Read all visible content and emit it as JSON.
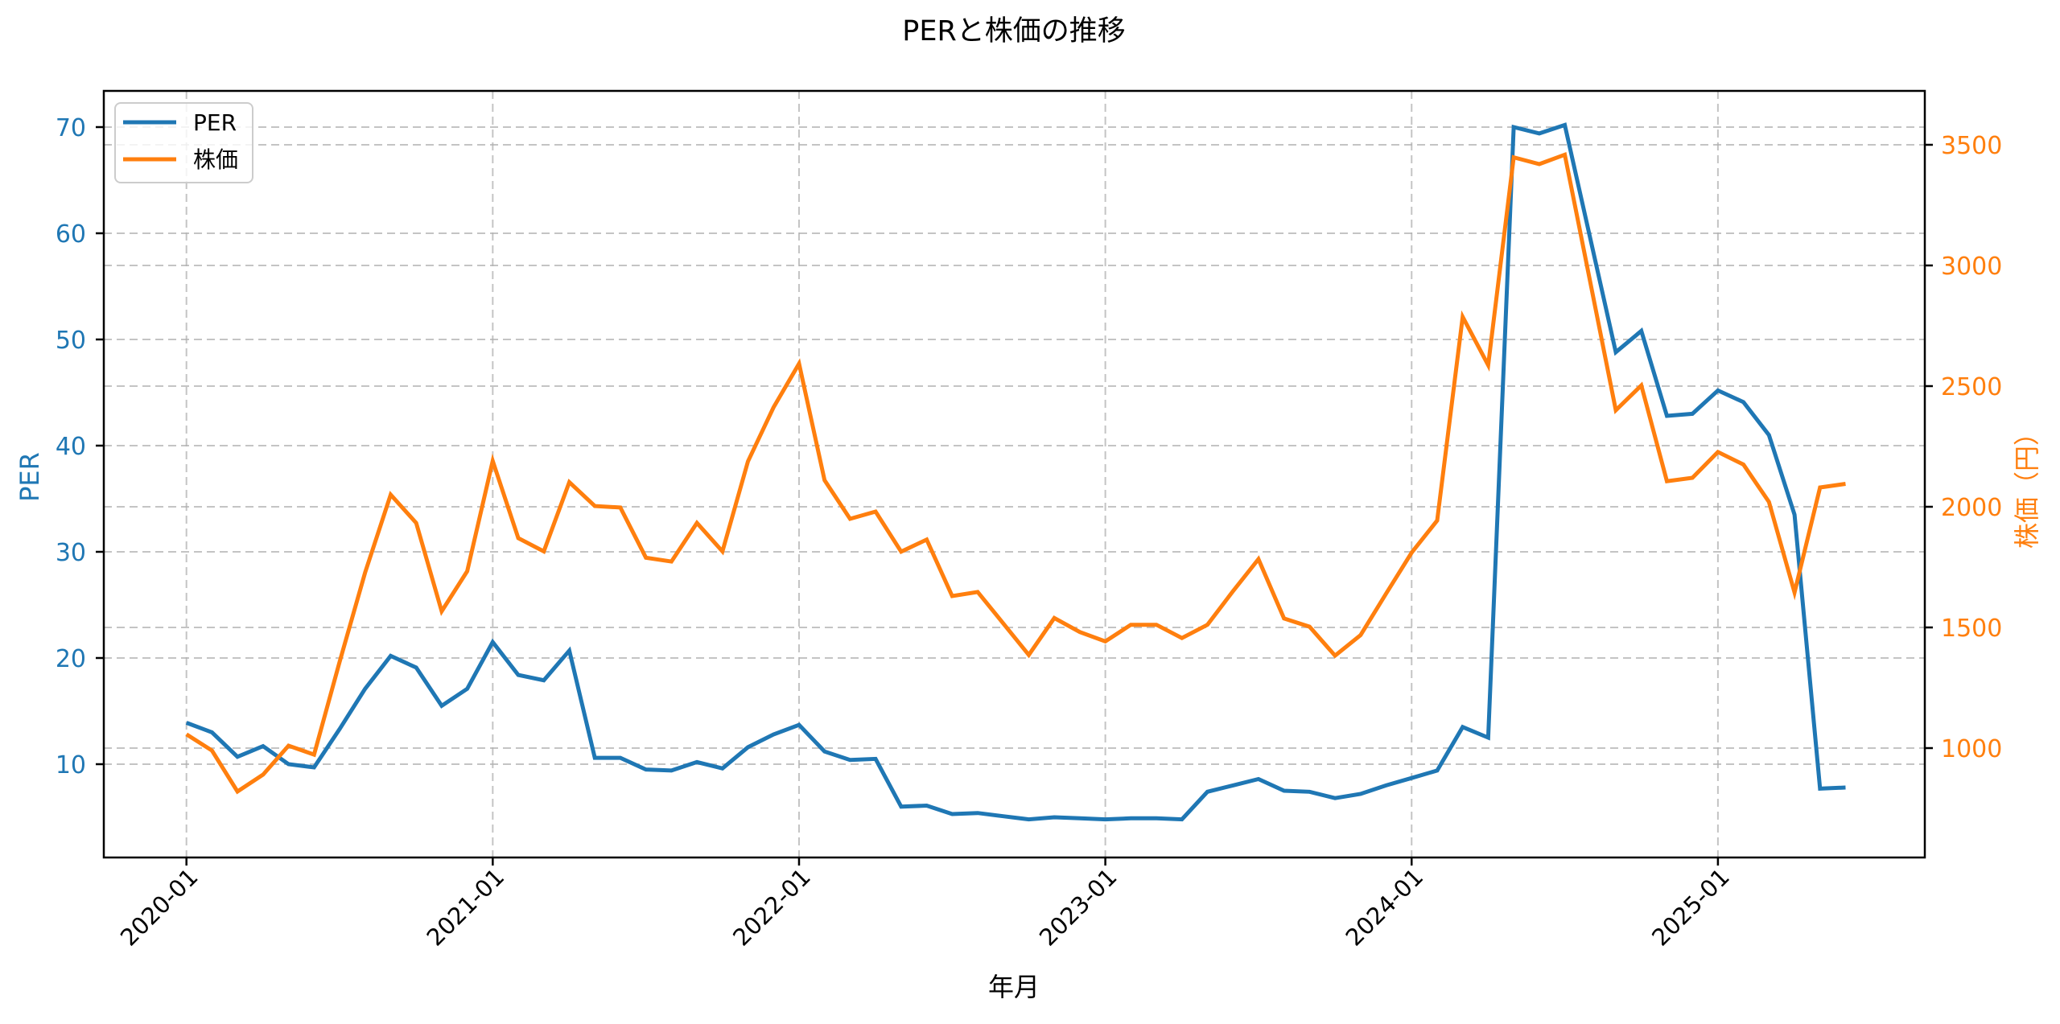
{
  "chart_data": {
    "type": "line",
    "title": "PERと株価の推移",
    "xlabel": "年月",
    "ylabel_left": "PER",
    "ylabel_right": "株価（円）",
    "ylim_left": [
      1.2,
      73.3
    ],
    "ylim_right": [
      550,
      3720
    ],
    "yticks_left": [
      10,
      20,
      30,
      40,
      50,
      60,
      70
    ],
    "yticks_right": [
      1000,
      1500,
      2000,
      2500,
      3000,
      3500
    ],
    "xticks": [
      "2020-01",
      "2021-01",
      "2022-01",
      "2023-01",
      "2024-01",
      "2025-01"
    ],
    "grid": true,
    "legend_position": "upper left",
    "x": [
      "2020-01",
      "2020-02",
      "2020-03",
      "2020-04",
      "2020-05",
      "2020-06",
      "2020-07",
      "2020-08",
      "2020-09",
      "2020-10",
      "2020-11",
      "2020-12",
      "2021-01",
      "2021-02",
      "2021-03",
      "2021-04",
      "2021-05",
      "2021-06",
      "2021-07",
      "2021-08",
      "2021-09",
      "2021-10",
      "2021-11",
      "2021-12",
      "2022-01",
      "2022-02",
      "2022-03",
      "2022-04",
      "2022-05",
      "2022-06",
      "2022-07",
      "2022-08",
      "2022-09",
      "2022-10",
      "2022-11",
      "2022-12",
      "2023-01",
      "2023-02",
      "2023-03",
      "2023-04",
      "2023-05",
      "2023-06",
      "2023-07",
      "2023-08",
      "2023-09",
      "2023-10",
      "2023-11",
      "2023-12",
      "2024-01",
      "2024-02",
      "2024-03",
      "2024-04",
      "2024-05",
      "2024-06",
      "2024-07",
      "2024-08",
      "2024-09",
      "2024-10",
      "2024-11",
      "2024-12",
      "2025-01",
      "2025-02",
      "2025-03",
      "2025-04",
      "2025-05",
      "2025-06"
    ],
    "series": [
      {
        "name": "PER",
        "axis": "left",
        "color": "#1f77b4",
        "values": [
          13.9,
          13.0,
          10.7,
          11.7,
          10.0,
          9.7,
          13.3,
          17.1,
          20.2,
          19.1,
          15.5,
          17.1,
          21.5,
          18.4,
          17.9,
          20.7,
          10.6,
          10.6,
          9.5,
          9.4,
          10.2,
          9.6,
          11.6,
          12.8,
          13.7,
          11.2,
          10.4,
          10.5,
          6.0,
          6.1,
          5.3,
          5.4,
          5.1,
          4.8,
          5.0,
          4.9,
          4.8,
          4.9,
          4.9,
          4.8,
          7.4,
          8.0,
          8.6,
          7.5,
          7.4,
          6.8,
          7.2,
          8.0,
          8.7,
          9.4,
          13.5,
          12.5,
          70.0,
          69.4,
          70.2,
          59.5,
          48.8,
          50.8,
          42.8,
          43.0,
          45.2,
          44.1,
          41.0,
          33.5,
          7.7,
          7.8
        ]
      },
      {
        "name": "株価",
        "axis": "right",
        "color": "#ff7f0e",
        "values": [
          1057,
          990,
          820,
          890,
          1010,
          973,
          1357,
          1727,
          2050,
          1933,
          1567,
          1733,
          2190,
          1870,
          1815,
          2102,
          2003,
          1997,
          1789,
          1773,
          1933,
          1815,
          2188,
          2412,
          2593,
          2110,
          1950,
          1980,
          1814,
          1864,
          1630,
          1647,
          1517,
          1386,
          1539,
          1481,
          1442,
          1511,
          1511,
          1456,
          1511,
          1650,
          1783,
          1537,
          1503,
          1383,
          1468,
          1640,
          1810,
          1943,
          2787,
          2587,
          3448,
          3420,
          3459,
          2930,
          2400,
          2503,
          2106,
          2120,
          2227,
          2175,
          2020,
          1645,
          2080,
          2095
        ]
      }
    ]
  },
  "legend": {
    "items": [
      {
        "label": "PER",
        "color": "#1f77b4"
      },
      {
        "label": "株価",
        "color": "#ff7f0e"
      }
    ]
  },
  "colors": {
    "left_axis": "#1f77b4",
    "right_axis": "#ff7f0e",
    "grid": "#b0b0b0",
    "spine": "#000000"
  }
}
